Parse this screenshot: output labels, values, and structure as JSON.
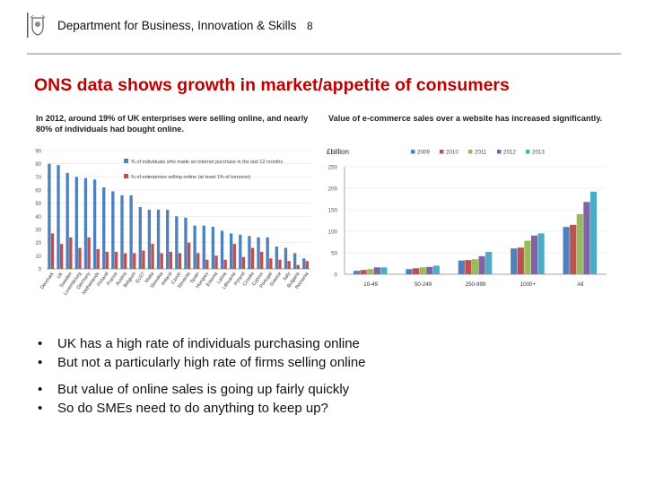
{
  "header": {
    "department": "Department for Business, Innovation & Skills",
    "page_number": "8"
  },
  "title": "ONS data shows growth in market/appetite of consumers",
  "left_caption": "In 2012, around 19% of UK enterprises were selling online, and nearly 80% of individuals had bought online.",
  "right_caption": "Value of e-commerce sales over a website has increased significantly.",
  "bullets": [
    "UK has a high rate of individuals purchasing online",
    "But not a particularly high rate of firms selling online",
    "But value of online sales is going up fairly quickly",
    "So do SMEs need to do anything to keep up?"
  ],
  "colors": {
    "title": "#c00000",
    "blue": "#4f81bd",
    "red": "#c0504d",
    "green": "#9bbb59",
    "purple": "#8064a2",
    "cyan": "#4bacc6"
  },
  "chart_data": [
    {
      "type": "bar",
      "ylim": [
        0,
        90
      ],
      "yticks": [
        "0",
        "10",
        "20",
        "30",
        "40",
        "50",
        "60",
        "70",
        "80",
        "90"
      ],
      "legend_position": "top-right",
      "categories": [
        "Denmark",
        "UK",
        "Sweden",
        "Luxembourg",
        "Germany",
        "Netherlands",
        "Finland",
        "France",
        "Austria",
        "Belgium",
        "EU27",
        "Malta",
        "Slovakia",
        "Ireland",
        "Czech",
        "Slovenia",
        "Spain",
        "Hungary",
        "Estonia",
        "Latvia",
        "Lithuania",
        "Poland",
        "Croatia",
        "Cyprus",
        "Portugal",
        "Greece",
        "Italy",
        "Bulgaria",
        "Romania"
      ],
      "series": [
        {
          "name": "% of individuals who made an internet purchase in the last 12 months",
          "values": [
            80,
            79,
            73,
            70,
            69,
            68,
            62,
            59,
            56,
            56,
            47,
            45,
            45,
            45,
            40,
            39,
            33,
            33,
            32,
            29,
            27,
            26,
            25,
            24,
            24,
            17,
            16,
            12,
            8
          ]
        },
        {
          "name": "% of enterprises selling online (at least 1% of turnover)",
          "values": [
            27,
            19,
            24,
            16,
            24,
            15,
            13,
            13,
            12,
            12,
            14,
            19,
            12,
            13,
            12,
            20,
            12,
            7,
            10,
            7,
            19,
            9,
            16,
            13,
            8,
            7,
            6,
            3,
            6
          ]
        }
      ]
    },
    {
      "type": "bar",
      "ylabel": "£billion",
      "ylim": [
        0,
        250
      ],
      "yticks": [
        "0",
        "50",
        "100",
        "150",
        "200",
        "250"
      ],
      "legend_position": "top",
      "categories": [
        "10-49",
        "50-249",
        "250-999",
        "1000+",
        "All"
      ],
      "series": [
        {
          "name": "2009",
          "values": [
            8,
            12,
            32,
            60,
            110
          ]
        },
        {
          "name": "2010",
          "values": [
            10,
            14,
            33,
            62,
            115
          ]
        },
        {
          "name": "2011",
          "values": [
            12,
            16,
            35,
            78,
            140
          ]
        },
        {
          "name": "2012",
          "values": [
            16,
            17,
            42,
            90,
            168
          ]
        },
        {
          "name": "2013",
          "values": [
            16,
            20,
            52,
            95,
            192
          ]
        }
      ]
    }
  ]
}
